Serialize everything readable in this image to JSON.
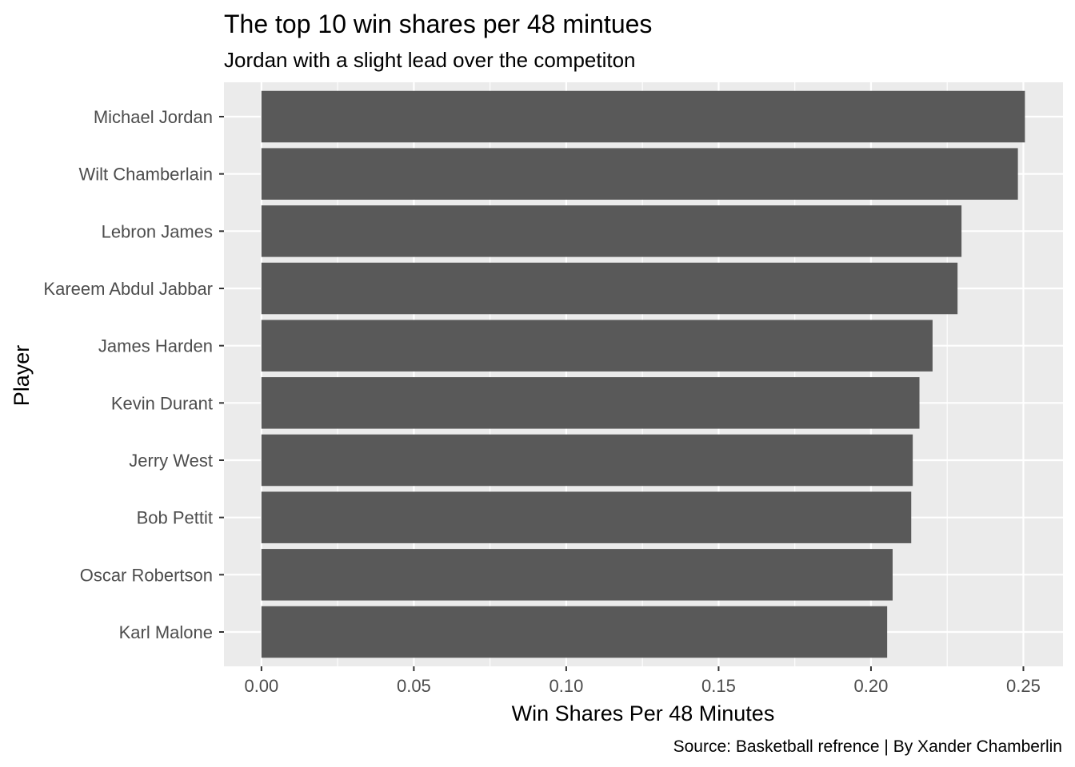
{
  "chart_data": {
    "type": "bar",
    "orientation": "horizontal",
    "title": "The top 10 win shares per 48 mintues",
    "subtitle": "Jordan with a slight lead over the competiton",
    "xlabel": "Win Shares Per 48 Minutes",
    "ylabel": "Player",
    "caption": "Source: Basketball refrence | By Xander Chamberlin",
    "categories": [
      "Michael Jordan",
      "Wilt Chamberlain",
      "Lebron James",
      "Kareem Abdul Jabbar",
      "James Harden",
      "Kevin Durant",
      "Jerry West",
      "Bob Pettit",
      "Oscar Robertson",
      "Karl Malone"
    ],
    "values": [
      0.2505,
      0.2482,
      0.2297,
      0.2284,
      0.2202,
      0.2159,
      0.2137,
      0.2132,
      0.2071,
      0.2053
    ],
    "xlim": [
      -0.0123,
      0.263
    ],
    "xticks": [
      0.0,
      0.05,
      0.1,
      0.15,
      0.2,
      0.25
    ],
    "xtick_labels": [
      "0.00",
      "0.05",
      "0.10",
      "0.15",
      "0.20",
      "0.25"
    ],
    "grid": true,
    "legend": "none",
    "colors": {
      "bar": "#595959",
      "panel": "#ebebeb",
      "grid": "#ffffff",
      "tick_text": "#4d4d4d"
    }
  }
}
